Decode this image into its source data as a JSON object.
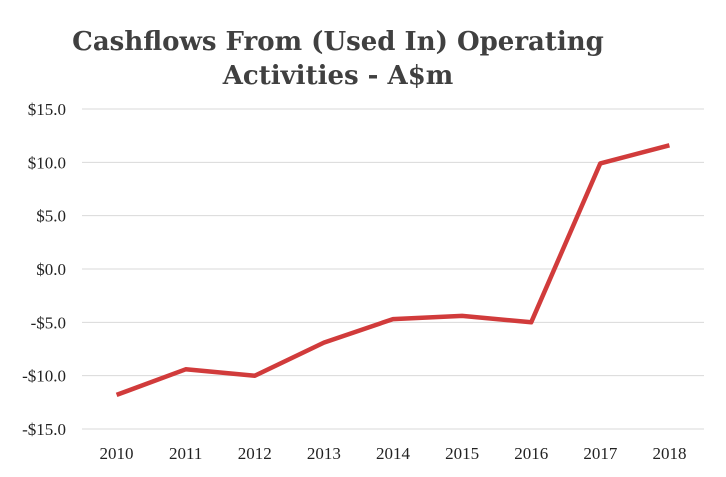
{
  "chart_data": {
    "type": "line",
    "title_lines": [
      "Cashflows From (Used In) Operating",
      "Activities - A$m"
    ],
    "categories": [
      "2010",
      "2011",
      "2012",
      "2013",
      "2014",
      "2015",
      "2016",
      "2017",
      "2018"
    ],
    "series": [
      {
        "values": [
          -11.8,
          -9.4,
          -10.0,
          -6.9,
          -4.7,
          -4.4,
          -5.0,
          9.9,
          11.6
        ],
        "color": "#d13b3b"
      }
    ],
    "ylim": [
      -15,
      15
    ],
    "yticks": [
      15,
      10,
      5,
      0,
      -5,
      -10,
      -15
    ],
    "ytick_labels": [
      "$15.0",
      "$10.0",
      "$5.0",
      "$0.0",
      "-$5.0",
      "-$10.0",
      "-$15.0"
    ],
    "grid": true,
    "legend": "none"
  }
}
